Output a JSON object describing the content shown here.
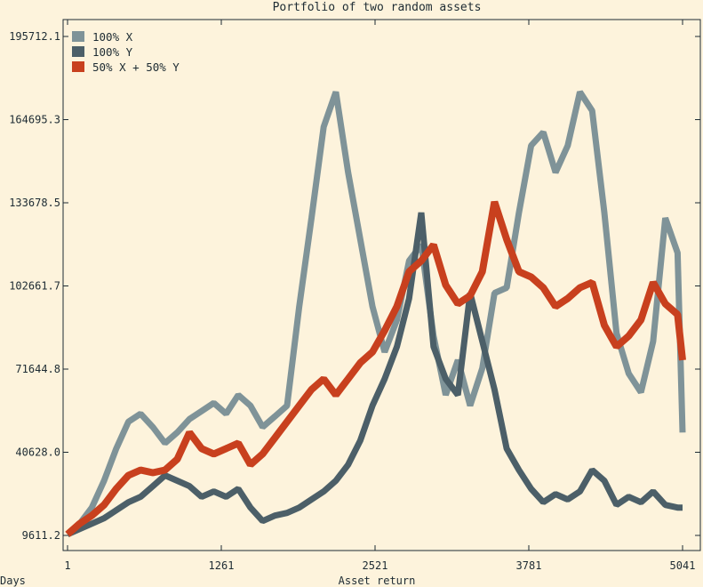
{
  "chart_data": {
    "type": "line",
    "title": "Portfolio of two random assets",
    "xlabel": "Asset return",
    "xlabel_left": "Days",
    "xlim": [
      1,
      5041
    ],
    "ylim": [
      9611.2,
      195712.1
    ],
    "x_ticks": [
      1,
      1261,
      2521,
      3781,
      5041
    ],
    "y_ticks": [
      "9611.2",
      "40628.0",
      "71644.8",
      "102661.7",
      "133678.5",
      "164695.3",
      "195712.1"
    ],
    "y_tick_values": [
      9611.2,
      40628.0,
      71644.8,
      102661.7,
      133678.5,
      164695.3,
      195712.1
    ],
    "legend_position": "top-left",
    "grid": false,
    "series": [
      {
        "name": "100% X",
        "color": "#7f9398",
        "x": [
          1,
          100,
          200,
          300,
          400,
          500,
          600,
          700,
          800,
          900,
          1000,
          1100,
          1200,
          1300,
          1400,
          1500,
          1600,
          1700,
          1800,
          1900,
          2000,
          2100,
          2200,
          2300,
          2400,
          2500,
          2600,
          2700,
          2800,
          2900,
          3000,
          3100,
          3200,
          3300,
          3400,
          3500,
          3600,
          3700,
          3800,
          3900,
          4000,
          4100,
          4200,
          4300,
          4400,
          4500,
          4600,
          4700,
          4800,
          4900,
          5000,
          5041
        ],
        "values": [
          10000,
          14000,
          20000,
          30000,
          42000,
          52000,
          55000,
          50000,
          44000,
          48000,
          53000,
          56000,
          59000,
          55000,
          62000,
          58000,
          50000,
          54000,
          58000,
          95000,
          128000,
          162000,
          175000,
          145000,
          120000,
          95000,
          78000,
          90000,
          112000,
          118000,
          84000,
          62000,
          75000,
          58000,
          72000,
          100000,
          102000,
          130000,
          155000,
          160000,
          145000,
          155000,
          175000,
          168000,
          130000,
          85000,
          70000,
          63000,
          82000,
          128000,
          115000,
          48000
        ]
      },
      {
        "name": "100% Y",
        "color": "#4c5f68",
        "x": [
          1,
          100,
          200,
          300,
          400,
          500,
          600,
          700,
          800,
          900,
          1000,
          1100,
          1200,
          1300,
          1400,
          1500,
          1600,
          1700,
          1800,
          1900,
          2000,
          2100,
          2200,
          2300,
          2400,
          2500,
          2600,
          2700,
          2800,
          2900,
          3000,
          3100,
          3200,
          3300,
          3400,
          3500,
          3600,
          3700,
          3800,
          3900,
          4000,
          4100,
          4200,
          4300,
          4400,
          4500,
          4600,
          4700,
          4800,
          4900,
          5000,
          5041
        ],
        "values": [
          10000,
          12000,
          14000,
          16000,
          19000,
          22000,
          24000,
          28000,
          32000,
          30000,
          28000,
          24000,
          26000,
          24000,
          27000,
          20000,
          15000,
          17000,
          18000,
          20000,
          23000,
          26000,
          30000,
          36000,
          45000,
          58000,
          68000,
          80000,
          98000,
          130000,
          80000,
          68000,
          62000,
          100000,
          82000,
          64000,
          42000,
          34000,
          27000,
          22000,
          25000,
          23000,
          26000,
          34000,
          30000,
          21000,
          24000,
          22000,
          26000,
          21000,
          20000,
          20000
        ]
      },
      {
        "name": "50% X + 50% Y",
        "color": "#c8401e",
        "x": [
          1,
          100,
          200,
          300,
          400,
          500,
          600,
          700,
          800,
          900,
          1000,
          1100,
          1200,
          1300,
          1400,
          1500,
          1600,
          1700,
          1800,
          1900,
          2000,
          2100,
          2200,
          2300,
          2400,
          2500,
          2600,
          2700,
          2800,
          2900,
          3000,
          3100,
          3200,
          3300,
          3400,
          3500,
          3600,
          3700,
          3800,
          3900,
          4000,
          4100,
          4200,
          4300,
          4400,
          4500,
          4600,
          4700,
          4800,
          4900,
          5000,
          5041
        ],
        "values": [
          10000,
          14000,
          17000,
          21000,
          27000,
          32000,
          34000,
          33000,
          34000,
          38000,
          48000,
          42000,
          40000,
          42000,
          44000,
          36000,
          40000,
          46000,
          52000,
          58000,
          64000,
          68000,
          62000,
          68000,
          74000,
          78000,
          86000,
          95000,
          108000,
          112000,
          118000,
          103000,
          96000,
          99000,
          108000,
          134000,
          120000,
          108000,
          106000,
          102000,
          95000,
          98000,
          102000,
          104000,
          88000,
          80000,
          84000,
          90000,
          104000,
          96000,
          92000,
          75000
        ]
      }
    ]
  }
}
